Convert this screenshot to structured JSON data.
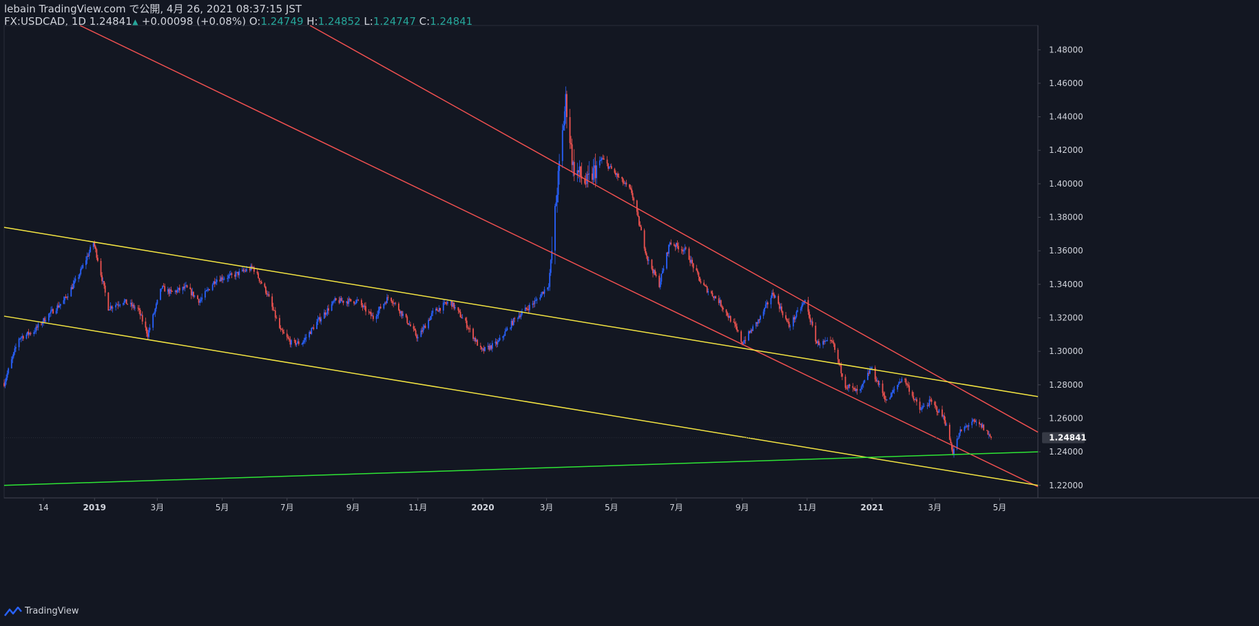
{
  "header": {
    "publish_line": "lebain TradingView.com で公開, 4月 26, 2021 08:37:15 JST",
    "symbol": "FX:USDCAD, 1D",
    "last": "1.24841",
    "change": "+0.00098 (+0.08%)",
    "o_label": "O:",
    "o": "1.24749",
    "h_label": "H:",
    "h": "1.24852",
    "l_label": "L:",
    "l": "1.24747",
    "c_label": "C:",
    "c": "1.24841"
  },
  "footer": {
    "brand": "TradingView",
    "logo_icon": "tradingview-logo-icon"
  },
  "chart_data": {
    "type": "candlestick",
    "symbol": "FX:USDCAD",
    "interval": "1D",
    "y_ticks": [
      "1.48000",
      "1.46000",
      "1.44000",
      "1.42000",
      "1.40000",
      "1.38000",
      "1.36000",
      "1.34000",
      "1.32000",
      "1.30000",
      "1.28000",
      "1.26000",
      "1.24000",
      "1.22000"
    ],
    "ylim": [
      1.2125,
      1.4945
    ],
    "xlim": [
      "2018-10-08",
      "2021-06-06"
    ],
    "x_ticks": [
      {
        "date": "2018-11-14",
        "label": "14"
      },
      {
        "date": "2019-01-01",
        "label": "2019"
      },
      {
        "date": "2019-03-01",
        "label": "3月"
      },
      {
        "date": "2019-05-01",
        "label": "5月"
      },
      {
        "date": "2019-07-01",
        "label": "7月"
      },
      {
        "date": "2019-09-01",
        "label": "9月"
      },
      {
        "date": "2019-11-01",
        "label": "11月"
      },
      {
        "date": "2020-01-01",
        "label": "2020"
      },
      {
        "date": "2020-03-01",
        "label": "3月"
      },
      {
        "date": "2020-05-01",
        "label": "5月"
      },
      {
        "date": "2020-07-01",
        "label": "7月"
      },
      {
        "date": "2020-09-01",
        "label": "9月"
      },
      {
        "date": "2020-11-01",
        "label": "11月"
      },
      {
        "date": "2021-01-01",
        "label": "2021"
      },
      {
        "date": "2021-03-01",
        "label": "3月"
      },
      {
        "date": "2021-05-01",
        "label": "5月"
      }
    ],
    "last_price": 1.24841,
    "last_price_label": "1.24841",
    "price_path": [
      [
        "2018-10-08",
        1.281
      ],
      [
        "2018-10-22",
        1.308
      ],
      [
        "2018-11-05",
        1.312
      ],
      [
        "2018-11-19",
        1.322
      ],
      [
        "2018-12-03",
        1.33
      ],
      [
        "2018-12-17",
        1.345
      ],
      [
        "2018-12-31",
        1.365
      ],
      [
        "2019-01-04",
        1.355
      ],
      [
        "2019-01-14",
        1.326
      ],
      [
        "2019-01-28",
        1.33
      ],
      [
        "2019-02-11",
        1.325
      ],
      [
        "2019-02-20",
        1.31
      ],
      [
        "2019-03-05",
        1.338
      ],
      [
        "2019-03-14",
        1.335
      ],
      [
        "2019-03-28",
        1.338
      ],
      [
        "2019-04-10",
        1.33
      ],
      [
        "2019-04-25",
        1.343
      ],
      [
        "2019-05-10",
        1.345
      ],
      [
        "2019-05-30",
        1.35
      ],
      [
        "2019-06-12",
        1.335
      ],
      [
        "2019-06-25",
        1.312
      ],
      [
        "2019-07-05",
        1.305
      ],
      [
        "2019-07-15",
        1.305
      ],
      [
        "2019-07-30",
        1.318
      ],
      [
        "2019-08-15",
        1.33
      ],
      [
        "2019-09-05",
        1.33
      ],
      [
        "2019-09-20",
        1.32
      ],
      [
        "2019-10-05",
        1.333
      ],
      [
        "2019-10-20",
        1.32
      ],
      [
        "2019-11-01",
        1.308
      ],
      [
        "2019-11-15",
        1.323
      ],
      [
        "2019-12-01",
        1.33
      ],
      [
        "2019-12-15",
        1.318
      ],
      [
        "2019-12-31",
        1.3
      ],
      [
        "2020-01-15",
        1.305
      ],
      [
        "2020-02-01",
        1.32
      ],
      [
        "2020-02-20",
        1.33
      ],
      [
        "2020-03-03",
        1.34
      ],
      [
        "2020-03-06",
        1.36
      ],
      [
        "2020-03-10",
        1.39
      ],
      [
        "2020-03-19",
        1.45
      ],
      [
        "2020-03-26",
        1.41
      ],
      [
        "2020-04-08",
        1.4
      ],
      [
        "2020-04-22",
        1.415
      ],
      [
        "2020-05-06",
        1.405
      ],
      [
        "2020-05-20",
        1.395
      ],
      [
        "2020-06-04",
        1.355
      ],
      [
        "2020-06-15",
        1.34
      ],
      [
        "2020-06-25",
        1.365
      ],
      [
        "2020-07-10",
        1.36
      ],
      [
        "2020-07-25",
        1.34
      ],
      [
        "2020-08-10",
        1.33
      ],
      [
        "2020-08-25",
        1.315
      ],
      [
        "2020-09-01",
        1.305
      ],
      [
        "2020-09-18",
        1.32
      ],
      [
        "2020-09-30",
        1.335
      ],
      [
        "2020-10-15",
        1.315
      ],
      [
        "2020-10-30",
        1.33
      ],
      [
        "2020-11-10",
        1.305
      ],
      [
        "2020-11-25",
        1.305
      ],
      [
        "2020-12-07",
        1.28
      ],
      [
        "2020-12-20",
        1.275
      ],
      [
        "2020-12-31",
        1.29
      ],
      [
        "2021-01-15",
        1.27
      ],
      [
        "2021-01-30",
        1.285
      ],
      [
        "2021-02-15",
        1.265
      ],
      [
        "2021-02-25",
        1.27
      ],
      [
        "2021-03-10",
        1.26
      ],
      [
        "2021-03-18",
        1.24
      ],
      [
        "2021-03-25",
        1.252
      ],
      [
        "2021-04-05",
        1.258
      ],
      [
        "2021-04-15",
        1.255
      ],
      [
        "2021-04-23",
        1.2484
      ]
    ],
    "colors": {
      "background": "#131722",
      "candle_up": "#2962ff",
      "candle_down": "#ef5350",
      "channel_red": "#f05050",
      "channel_yellow": "#f5e642",
      "support_green": "#2ee635",
      "axis_text": "#d1d4dc"
    }
  }
}
